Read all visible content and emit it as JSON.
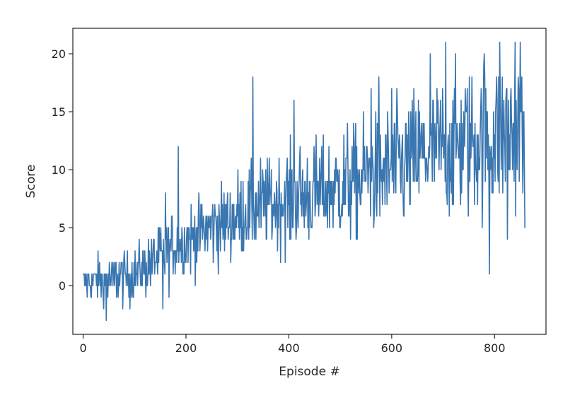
{
  "chart_data": {
    "type": "line",
    "title": "",
    "xlabel": "Episode #",
    "ylabel": "Score",
    "xlim": [
      -20,
      900
    ],
    "ylim": [
      -4.2,
      22.2
    ],
    "xticks": [
      0,
      200,
      400,
      600,
      800
    ],
    "yticks": [
      0,
      5,
      10,
      15,
      20
    ],
    "grid": false,
    "legend": "none",
    "series": [
      {
        "color": "#3a76b0",
        "num_points": 860,
        "x_start": 0,
        "x_step": 1,
        "trend_anchors": [
          [
            0,
            0.3
          ],
          [
            50,
            0.5
          ],
          [
            100,
            1.0
          ],
          [
            150,
            2.5
          ],
          [
            200,
            4.0
          ],
          [
            250,
            5.0
          ],
          [
            300,
            6.0
          ],
          [
            350,
            7.0
          ],
          [
            400,
            7.5
          ],
          [
            450,
            8.0
          ],
          [
            500,
            8.5
          ],
          [
            550,
            9.5
          ],
          [
            600,
            10.0
          ],
          [
            650,
            11.0
          ],
          [
            700,
            12.0
          ],
          [
            750,
            12.5
          ],
          [
            800,
            13.0
          ],
          [
            859,
            13.5
          ]
        ],
        "y_min": -3,
        "y_max": 21,
        "peaks": [
          [
            45,
            -3
          ],
          [
            155,
            -2
          ],
          [
            160,
            8
          ],
          [
            185,
            12
          ],
          [
            330,
            18
          ],
          [
            410,
            16
          ],
          [
            560,
            17
          ],
          [
            575,
            18
          ],
          [
            600,
            17
          ],
          [
            675,
            20
          ],
          [
            705,
            21
          ],
          [
            780,
            20
          ],
          [
            790,
            1
          ],
          [
            810,
            21
          ],
          [
            825,
            4
          ],
          [
            840,
            21
          ],
          [
            850,
            21
          ],
          [
            855,
            8
          ]
        ]
      }
    ]
  }
}
